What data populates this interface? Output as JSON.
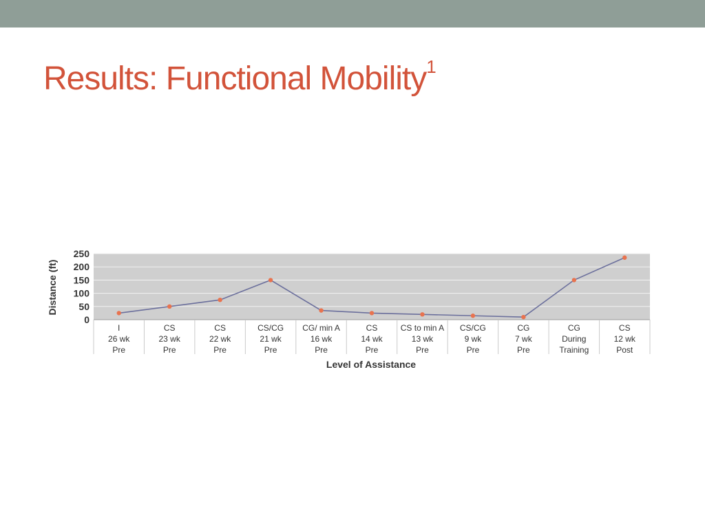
{
  "slide": {
    "title": "Results: Functional Mobility",
    "title_sup": "1",
    "accent_color": "#d2533a",
    "top_bar_color": "#8f9e97"
  },
  "chart_data": {
    "type": "line",
    "categories": [
      [
        "I",
        "26 wk",
        "Pre"
      ],
      [
        "CS",
        "23 wk",
        "Pre"
      ],
      [
        "CS",
        "22 wk",
        "Pre"
      ],
      [
        "CS/CG",
        "21 wk",
        "Pre"
      ],
      [
        "CG/ min A",
        "16 wk",
        "Pre"
      ],
      [
        "CS",
        "14 wk",
        "Pre"
      ],
      [
        "CS to min A",
        "13 wk",
        "Pre"
      ],
      [
        "CS/CG",
        "9 wk",
        "Pre"
      ],
      [
        "CG",
        "7 wk",
        "Pre"
      ],
      [
        "CG",
        "During",
        "Training"
      ],
      [
        "CS",
        "12 wk",
        "Post"
      ]
    ],
    "values": [
      25,
      50,
      75,
      150,
      35,
      25,
      20,
      15,
      10,
      150,
      235
    ],
    "xlabel": "Level of Assistance",
    "ylabel": "Distance (ft)",
    "ylim": [
      0,
      250
    ],
    "yticks": [
      0,
      50,
      100,
      150,
      200,
      250
    ],
    "grid": true,
    "line_color": "#6b6f9c",
    "marker_color": "#e8734f",
    "plot_bg": "#cfcfcf"
  }
}
